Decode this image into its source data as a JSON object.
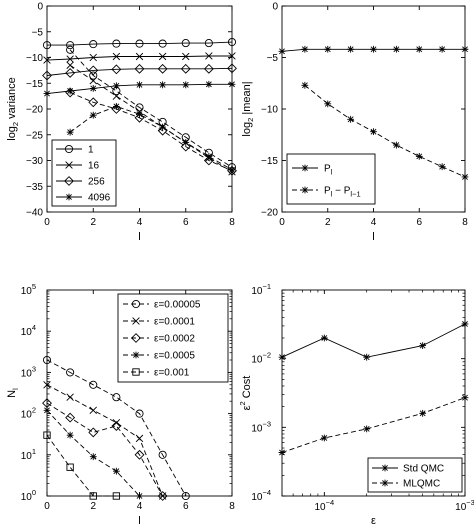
{
  "chart_data": [
    {
      "type": "line",
      "xlabel": "l",
      "ylabel_main": "log",
      "ylabel_sub": "2",
      "ylabel_rest": " variance",
      "xlim": [
        0,
        8
      ],
      "ylim": [
        -40,
        0
      ],
      "xticks": [
        0,
        2,
        4,
        6,
        8
      ],
      "yticks": [
        -40,
        -35,
        -30,
        -25,
        -20,
        -15,
        -10,
        -5,
        0
      ],
      "xtick_labels": [
        "0",
        "2",
        "4",
        "6",
        "8"
      ],
      "ytick_labels": [
        "−40",
        "−35",
        "−30",
        "−25",
        "−20",
        "−15",
        "−10",
        "−5",
        "0"
      ],
      "legend_position": "bottom-left",
      "series": [
        {
          "name": "1",
          "marker": "o",
          "solid": {
            "x": [
              0,
              1,
              2,
              3,
              4,
              5,
              6,
              7,
              8
            ],
            "y": [
              -7.6,
              -7.6,
              -7.4,
              -7.3,
              -7.3,
              -7.3,
              -7.2,
              -7.2,
              -7.0
            ]
          },
          "dashed": {
            "x": [
              1,
              2,
              3,
              4,
              5,
              6,
              7,
              8
            ],
            "y": [
              -8.5,
              -13.5,
              -16.5,
              -19.7,
              -22.5,
              -25.5,
              -28.5,
              -31.3
            ]
          }
        },
        {
          "name": "16",
          "marker": "x",
          "solid": {
            "x": [
              0,
              1,
              2,
              3,
              4,
              5,
              6,
              7,
              8
            ],
            "y": [
              -10.5,
              -10.3,
              -10.0,
              -9.8,
              -9.8,
              -9.8,
              -9.8,
              -9.7,
              -9.7
            ]
          },
          "dashed": {
            "x": [
              1,
              2,
              3,
              4,
              5,
              6,
              7,
              8
            ],
            "y": [
              -11.5,
              -14.5,
              -17.5,
              -20.5,
              -23.5,
              -26.5,
              -29.5,
              -32.2
            ]
          }
        },
        {
          "name": "256",
          "marker": "diamond",
          "solid": {
            "x": [
              0,
              1,
              2,
              3,
              4,
              5,
              6,
              7,
              8
            ],
            "y": [
              -13.5,
              -13.0,
              -12.5,
              -12.3,
              -12.2,
              -12.2,
              -12.2,
              -12.2,
              -12.1
            ]
          },
          "dashed": {
            "x": [
              1,
              2,
              3,
              4,
              5,
              6,
              7,
              8
            ],
            "y": [
              -16.8,
              -18.7,
              -20.0,
              -21.7,
              -24.2,
              -27.3,
              -30.0,
              -32.0
            ]
          }
        },
        {
          "name": "4096",
          "marker": "asterisk",
          "solid": {
            "x": [
              0,
              1,
              2,
              3,
              4,
              5,
              6,
              7,
              8
            ],
            "y": [
              -17.0,
              -16.5,
              -16.0,
              -15.5,
              -15.3,
              -15.3,
              -15.3,
              -15.2,
              -15.2
            ]
          },
          "dashed": {
            "x": [
              1,
              2,
              3,
              4,
              5,
              6,
              7,
              8
            ],
            "y": [
              -24.5,
              -21.2,
              -19.5,
              -21.0,
              -23.5,
              -26.5,
              -29.2,
              -31.8
            ]
          }
        }
      ]
    },
    {
      "type": "line",
      "xlabel": "l",
      "ylabel_main": "log",
      "ylabel_sub": "2",
      "ylabel_rest": " |mean|",
      "xlim": [
        0,
        8
      ],
      "ylim": [
        -20,
        0
      ],
      "xticks": [
        0,
        2,
        4,
        6,
        8
      ],
      "yticks": [
        -20,
        -15,
        -10,
        -5,
        0
      ],
      "xtick_labels": [
        "0",
        "2",
        "4",
        "6",
        "8"
      ],
      "ytick_labels": [
        "−20",
        "−15",
        "−10",
        "−5",
        "0"
      ],
      "legend_position": "bottom-left",
      "series": [
        {
          "name_main": "P",
          "name_sub": "l",
          "style": "solid",
          "marker": "asterisk",
          "x": [
            0,
            1,
            2,
            3,
            4,
            5,
            6,
            7,
            8
          ],
          "y": [
            -4.4,
            -4.2,
            -4.2,
            -4.2,
            -4.2,
            -4.2,
            -4.2,
            -4.2,
            -4.2
          ]
        },
        {
          "name_main": "P",
          "name_sub": "l",
          "name_mid": " − P",
          "name_sub2": "l−1",
          "style": "dashed",
          "marker": "asterisk",
          "x": [
            1,
            2,
            3,
            4,
            5,
            6,
            7,
            8
          ],
          "y": [
            -7.7,
            -9.5,
            -11.0,
            -12.2,
            -13.5,
            -14.6,
            -15.6,
            -16.6
          ]
        }
      ]
    },
    {
      "type": "line",
      "xlabel": "l",
      "ylabel_main": "N",
      "ylabel_sub": "l",
      "xlim": [
        0,
        8
      ],
      "yscale": "log",
      "ylim": [
        1,
        100000
      ],
      "xticks": [
        0,
        2,
        4,
        6,
        8
      ],
      "yticks": [
        1,
        10,
        100,
        1000,
        10000,
        100000
      ],
      "xtick_labels": [
        "0",
        "2",
        "4",
        "6",
        "8"
      ],
      "ytick_exponents": [
        "0",
        "1",
        "2",
        "3",
        "4",
        "5"
      ],
      "ytick_base": "10",
      "legend_position": "top-right",
      "series": [
        {
          "name": "ε=0.00005",
          "style": "dashed",
          "marker": "o",
          "x": [
            0,
            1,
            2,
            3,
            4,
            5,
            6
          ],
          "y": [
            2000,
            1000,
            500,
            250,
            100,
            10,
            1
          ]
        },
        {
          "name": "ε=0.0001",
          "style": "dashed",
          "marker": "x",
          "x": [
            0,
            1,
            2,
            3,
            4,
            5
          ],
          "y": [
            500,
            250,
            120,
            60,
            25,
            1
          ]
        },
        {
          "name": "ε=0.0002",
          "style": "dashed",
          "marker": "diamond",
          "x": [
            0,
            1,
            2,
            3,
            4,
            5
          ],
          "y": [
            180,
            80,
            35,
            50,
            10,
            1
          ]
        },
        {
          "name": "ε=0.0005",
          "style": "dashed",
          "marker": "asterisk",
          "x": [
            0,
            1,
            2,
            3,
            4
          ],
          "y": [
            120,
            30,
            9,
            4,
            1
          ]
        },
        {
          "name": "ε=0.001",
          "style": "dashed",
          "marker": "square",
          "x": [
            0,
            1,
            2,
            3
          ],
          "y": [
            30,
            5,
            1,
            1
          ]
        }
      ]
    },
    {
      "type": "line",
      "xlabel": "ε",
      "ylabel_main": "ε",
      "ylabel_sup": "2",
      "ylabel_rest": " Cost",
      "xscale": "log",
      "yscale": "log",
      "xlim": [
        5e-05,
        0.001
      ],
      "ylim": [
        0.0001,
        0.1
      ],
      "xticks": [
        0.0001,
        0.001
      ],
      "yticks": [
        0.0001,
        0.001,
        0.01,
        0.1
      ],
      "xtick_exponents": [
        "−4",
        "−3"
      ],
      "ytick_exponents": [
        "−4",
        "−3",
        "−2",
        "−1"
      ],
      "tick_base": "10",
      "legend_position": "bottom-right",
      "series": [
        {
          "name": "Std QMC",
          "style": "solid",
          "marker": "asterisk",
          "x": [
            5e-05,
            0.0001,
            0.0002,
            0.0005,
            0.001
          ],
          "y": [
            0.0105,
            0.02,
            0.0105,
            0.0155,
            0.032
          ]
        },
        {
          "name": "MLQMC",
          "style": "dashed",
          "marker": "asterisk",
          "x": [
            5e-05,
            0.0001,
            0.0002,
            0.0005,
            0.001
          ],
          "y": [
            0.00043,
            0.0007,
            0.00095,
            0.0016,
            0.0027
          ]
        }
      ]
    }
  ]
}
